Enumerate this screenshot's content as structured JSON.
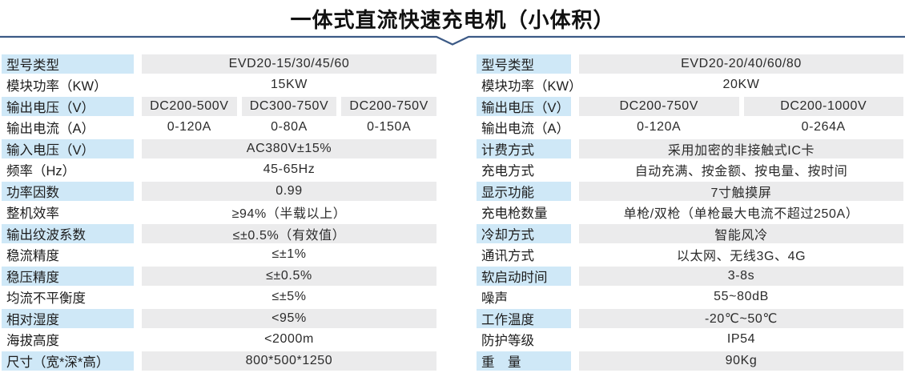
{
  "title": "一体式直流快速充电机（小体积）",
  "colors": {
    "label_bg": "#cfe8f7",
    "value_bg": "#ebebec",
    "divider": "#3c5a86"
  },
  "tables": [
    {
      "id": "left",
      "rows": [
        {
          "label": "型号类型",
          "values": [
            "EVD20-15/30/45/60"
          ],
          "shaded": true
        },
        {
          "label": "模块功率（KW）",
          "values": [
            "15KW"
          ],
          "shaded": false
        },
        {
          "label": "输出电压（V）",
          "values": [
            "DC200-500V",
            "DC300-750V",
            "DC200-750V"
          ],
          "shaded": true
        },
        {
          "label": "输出电流（A）",
          "values": [
            "0-120A",
            "0-80A",
            "0-150A"
          ],
          "shaded": false
        },
        {
          "label": "输入电压（V）",
          "values": [
            "AC380V±15%"
          ],
          "shaded": true
        },
        {
          "label": "频率（Hz）",
          "values": [
            "45-65Hz"
          ],
          "shaded": false
        },
        {
          "label": "功率因数",
          "values": [
            "0.99"
          ],
          "shaded": true
        },
        {
          "label": "整机效率",
          "values": [
            "≥94%（半载以上）"
          ],
          "shaded": false
        },
        {
          "label": "输出纹波系数",
          "values": [
            "≤±0.5%（有效值）"
          ],
          "shaded": true
        },
        {
          "label": "稳流精度",
          "values": [
            "≤±1%"
          ],
          "shaded": false
        },
        {
          "label": "稳压精度",
          "values": [
            "≤±0.5%"
          ],
          "shaded": true
        },
        {
          "label": "均流不平衡度",
          "values": [
            "≤±5%"
          ],
          "shaded": false
        },
        {
          "label": "相对湿度",
          "values": [
            "<95%"
          ],
          "shaded": true
        },
        {
          "label": "海拔高度",
          "values": [
            "<2000m"
          ],
          "shaded": false
        },
        {
          "label": "尺寸（宽*深*高）",
          "values": [
            "800*500*1250"
          ],
          "shaded": true
        }
      ]
    },
    {
      "id": "right",
      "rows": [
        {
          "label": "型号类型",
          "values": [
            "EVD20-20/40/60/80"
          ],
          "shaded": true
        },
        {
          "label": "模块功率（KW）",
          "values": [
            "20KW"
          ],
          "shaded": false
        },
        {
          "label": "输出电压（V）",
          "values": [
            "DC200-750V",
            "DC200-1000V"
          ],
          "shaded": true
        },
        {
          "label": "输出电流（A）",
          "values": [
            "0-120A",
            "0-264A"
          ],
          "shaded": false
        },
        {
          "label": "计费方式",
          "values": [
            "采用加密的非接触式IC卡"
          ],
          "shaded": true
        },
        {
          "label": "充电方式",
          "values": [
            "自动充满、按金额、按电量、按时间"
          ],
          "shaded": false
        },
        {
          "label": "显示功能",
          "values": [
            "7寸触摸屏"
          ],
          "shaded": true
        },
        {
          "label": "充电枪数量",
          "values": [
            "单枪/双枪（单枪最大电流不超过250A）"
          ],
          "shaded": false
        },
        {
          "label": "冷却方式",
          "values": [
            "智能风冷"
          ],
          "shaded": true
        },
        {
          "label": "通讯方式",
          "values": [
            "以太网、无线3G、4G"
          ],
          "shaded": false
        },
        {
          "label": "软启动时间",
          "values": [
            "3-8s"
          ],
          "shaded": true
        },
        {
          "label": "噪声",
          "values": [
            "55~80dB"
          ],
          "shaded": false
        },
        {
          "label": "工作温度",
          "values": [
            "-20℃~50℃"
          ],
          "shaded": true
        },
        {
          "label": "防护等级",
          "values": [
            "IP54"
          ],
          "shaded": false
        },
        {
          "label": "重　量",
          "values": [
            "90Kg"
          ],
          "shaded": true
        }
      ]
    }
  ]
}
